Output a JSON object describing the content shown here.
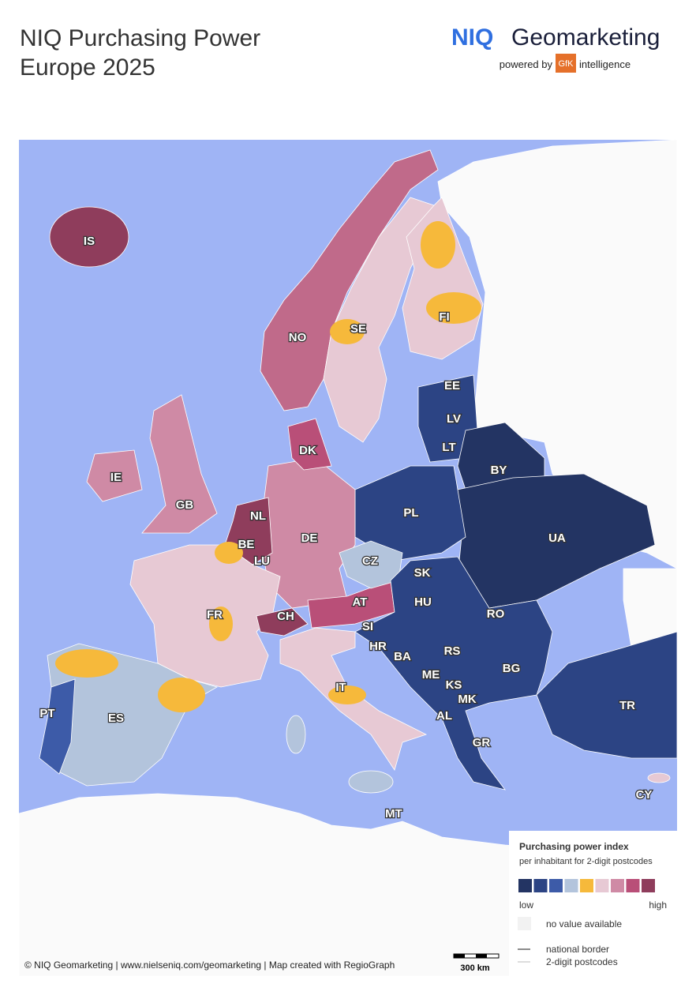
{
  "header": {
    "title_lines": [
      "NIQ Purchasing Power",
      "Europe 2025"
    ]
  },
  "brand": {
    "niq": "NIQ",
    "name": "Geomarketing",
    "powered_by": "powered by",
    "gfk": "GfK",
    "intelligence": "intelligence"
  },
  "map": {
    "countries": [
      "IS",
      "NO",
      "SE",
      "FI",
      "EE",
      "LV",
      "LT",
      "BY",
      "DK",
      "IE",
      "GB",
      "NL",
      "BE",
      "LU",
      "DE",
      "PL",
      "UA",
      "CZ",
      "SK",
      "FR",
      "CH",
      "AT",
      "HU",
      "RO",
      "SI",
      "HR",
      "BA",
      "RS",
      "BG",
      "ME",
      "KS",
      "IT",
      "MK",
      "PT",
      "ES",
      "AL",
      "TR",
      "GR",
      "CY",
      "MT"
    ]
  },
  "legend": {
    "title": "Purchasing power index",
    "subtitle": "per inhabitant for 2-digit postcodes",
    "colors": [
      "#233463",
      "#2c4484",
      "#3d5ba8",
      "#b3c4dc",
      "#f6b93b",
      "#e7c9d4",
      "#cf8aa5",
      "#b94f78",
      "#8f3d5c"
    ],
    "low": "low",
    "high": "high",
    "no_value": "no value available",
    "national_border": "national border",
    "postcodes": "2-digit postcodes"
  },
  "scale": "300 km",
  "copyright": "© NIQ Geomarketing | www.nielseniq.com/geomarketing | Map created with RegioGraph"
}
